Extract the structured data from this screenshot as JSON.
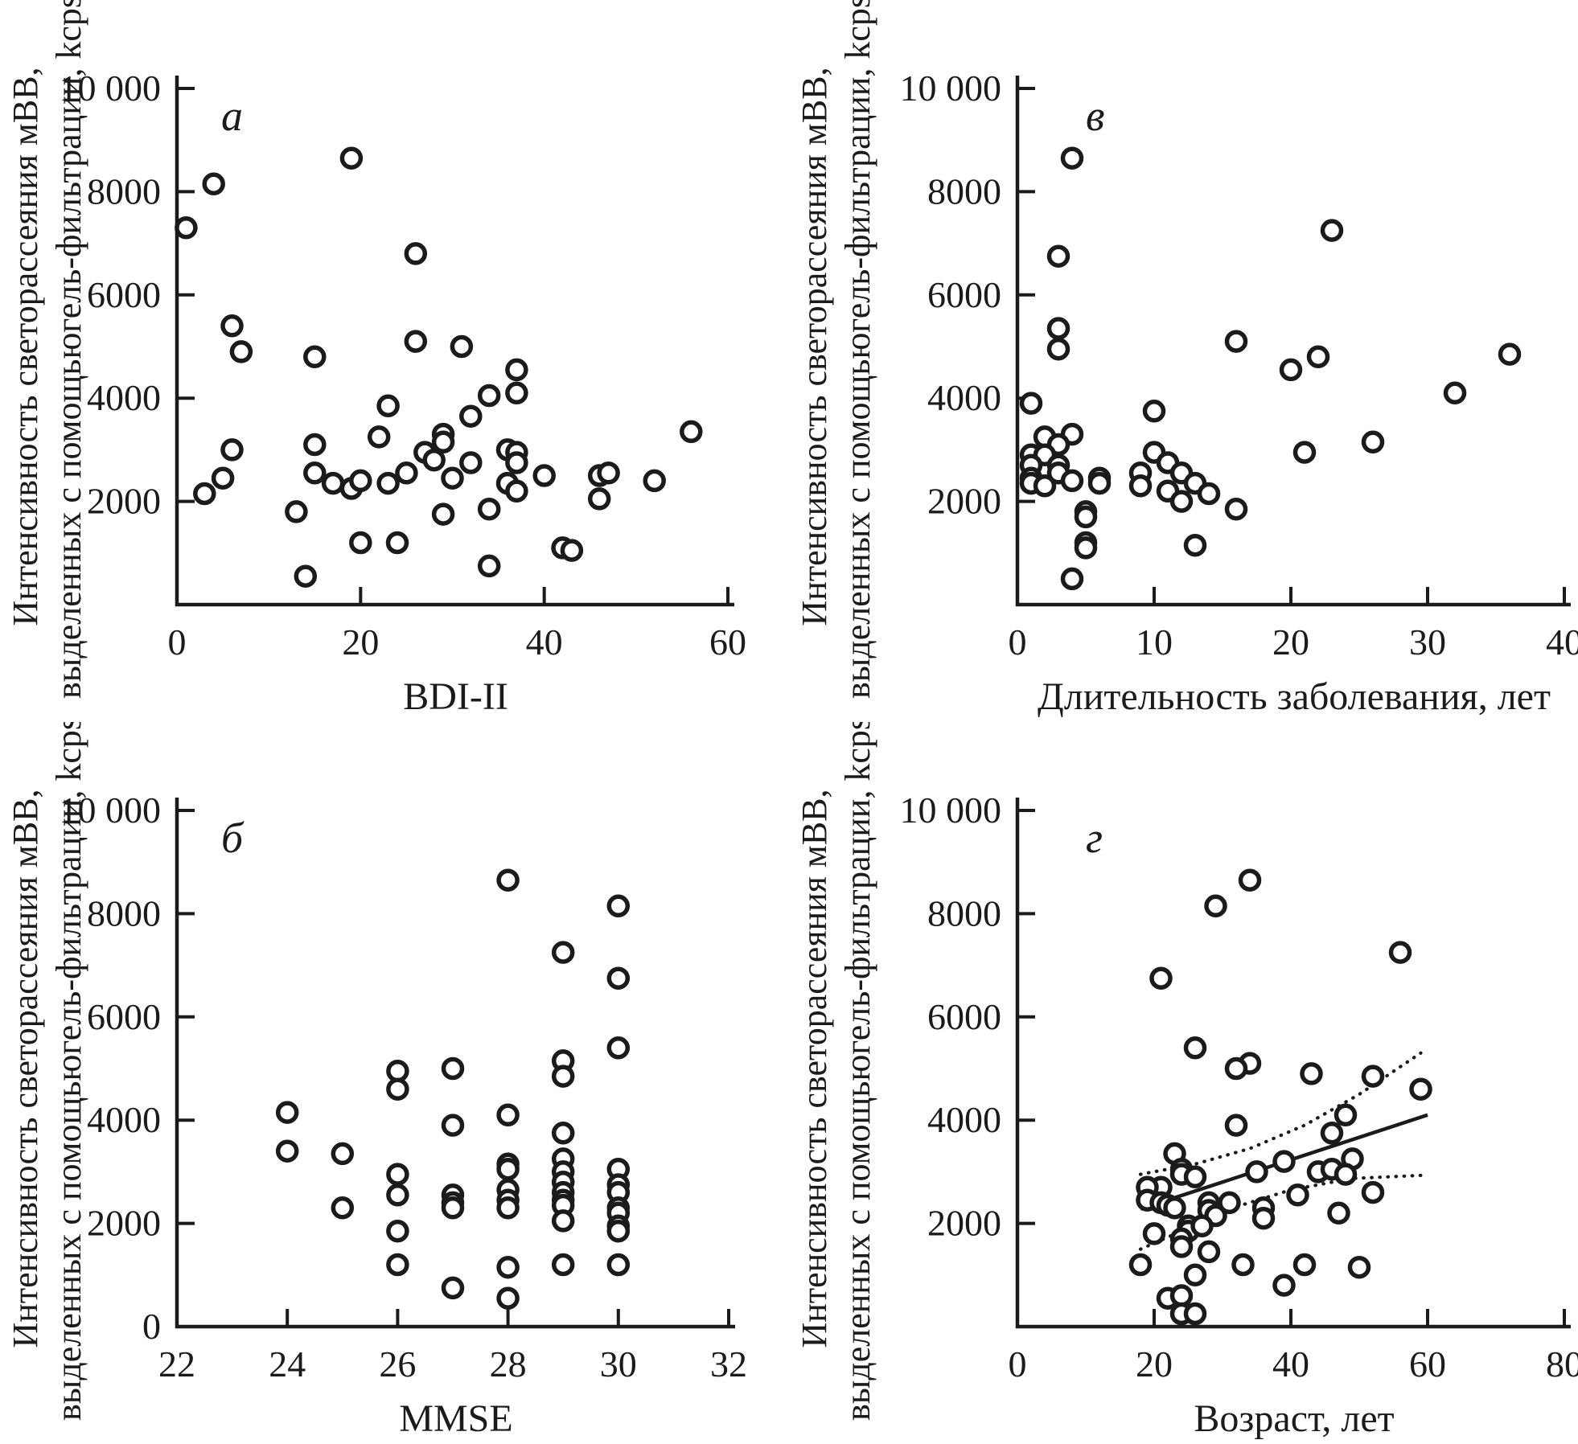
{
  "figure": {
    "kind": "four-panel-scatter-figure",
    "background": "#ffffff",
    "ink_color": "#1b1b1b",
    "shared_ylabel_line1": "Интенсивность светорассеяния мВВ,",
    "shared_ylabel_line2": "выделенных с помощьюгель-фильтрации, kcps"
  },
  "chart_data": [
    {
      "id": "a",
      "panel_letter": "а",
      "type": "scatter",
      "title": "",
      "xlabel": "BDI-II",
      "ylabel_line1": "Интенсивность светорассеяния мВВ,",
      "ylabel_line2": "выделенных с помощьюгель-фильтрации, kcps",
      "xlim": [
        0,
        60
      ],
      "ylim": [
        0,
        10000
      ],
      "xticks": [
        0,
        20,
        40,
        60
      ],
      "yticks": [
        2000,
        4000,
        6000,
        8000,
        10000
      ],
      "ytick_labels": [
        "2000",
        "4000",
        "6000",
        "8000",
        "10 000"
      ],
      "show_y_zero_label": false,
      "grid": false,
      "points": [
        [
          19,
          8650
        ],
        [
          4,
          8150
        ],
        [
          1,
          7300
        ],
        [
          26,
          6800
        ],
        [
          6,
          5400
        ],
        [
          7,
          4900
        ],
        [
          15,
          4800
        ],
        [
          26,
          5100
        ],
        [
          31,
          5000
        ],
        [
          37,
          4550
        ],
        [
          34,
          4050
        ],
        [
          37,
          4100
        ],
        [
          23,
          3850
        ],
        [
          32,
          3650
        ],
        [
          3,
          2150
        ],
        [
          5,
          2450
        ],
        [
          6,
          3000
        ],
        [
          13,
          1800
        ],
        [
          15,
          3100
        ],
        [
          15,
          2550
        ],
        [
          17,
          2350
        ],
        [
          19,
          2250
        ],
        [
          20,
          2400
        ],
        [
          20,
          1200
        ],
        [
          22,
          3250
        ],
        [
          23,
          2350
        ],
        [
          24,
          1200
        ],
        [
          25,
          2550
        ],
        [
          27,
          2950
        ],
        [
          28,
          2800
        ],
        [
          29,
          3300
        ],
        [
          29,
          3150
        ],
        [
          30,
          2450
        ],
        [
          29,
          1750
        ],
        [
          32,
          2750
        ],
        [
          34,
          1850
        ],
        [
          34,
          750
        ],
        [
          36,
          3000
        ],
        [
          36,
          2350
        ],
        [
          37,
          2950
        ],
        [
          37,
          2750
        ],
        [
          37,
          2200
        ],
        [
          14,
          550
        ],
        [
          40,
          2500
        ],
        [
          42,
          1100
        ],
        [
          43,
          1050
        ],
        [
          46,
          2500
        ],
        [
          47,
          2550
        ],
        [
          46,
          2050
        ],
        [
          52,
          2400
        ],
        [
          56,
          3350
        ]
      ]
    },
    {
      "id": "v",
      "panel_letter": "в",
      "type": "scatter",
      "title": "",
      "xlabel": "Длительность заболевания, лет",
      "ylabel_line1": "Интенсивность светорассеяния мВВ,",
      "ylabel_line2": "выделенных с помощьюгель-фильтрации, kcps",
      "xlim": [
        0,
        40
      ],
      "ylim": [
        0,
        10000
      ],
      "xticks": [
        0,
        10,
        20,
        30,
        40
      ],
      "yticks": [
        2000,
        4000,
        6000,
        8000,
        10000
      ],
      "ytick_labels": [
        "2000",
        "4000",
        "6000",
        "8000",
        "10 000"
      ],
      "show_y_zero_label": false,
      "grid": false,
      "points": [
        [
          4,
          8650
        ],
        [
          23,
          7250
        ],
        [
          3,
          6750
        ],
        [
          3,
          5350
        ],
        [
          3,
          4950
        ],
        [
          16,
          5100
        ],
        [
          22,
          4800
        ],
        [
          20,
          4550
        ],
        [
          36,
          4850
        ],
        [
          32,
          4100
        ],
        [
          1,
          3900
        ],
        [
          10,
          3750
        ],
        [
          4,
          3300
        ],
        [
          2,
          3250
        ],
        [
          3,
          3100
        ],
        [
          26,
          3150
        ],
        [
          21,
          2950
        ],
        [
          10,
          2950
        ],
        [
          1,
          2900
        ],
        [
          2,
          2900
        ],
        [
          11,
          2750
        ],
        [
          1,
          2700
        ],
        [
          3,
          2700
        ],
        [
          3,
          2550
        ],
        [
          1,
          2450
        ],
        [
          1,
          2350
        ],
        [
          2,
          2300
        ],
        [
          4,
          2400
        ],
        [
          6,
          2450
        ],
        [
          6,
          2350
        ],
        [
          9,
          2550
        ],
        [
          9,
          2300
        ],
        [
          12,
          2550
        ],
        [
          11,
          2200
        ],
        [
          12,
          2000
        ],
        [
          13,
          2350
        ],
        [
          14,
          2150
        ],
        [
          16,
          1850
        ],
        [
          5,
          1800
        ],
        [
          5,
          1700
        ],
        [
          5,
          1200
        ],
        [
          5,
          1100
        ],
        [
          13,
          1150
        ],
        [
          4,
          500
        ]
      ]
    },
    {
      "id": "b",
      "panel_letter": "б",
      "type": "scatter",
      "title": "",
      "xlabel": "MMSE",
      "ylabel_line1": "Интенсивность светорассеяния мВВ,",
      "ylabel_line2": "выделенных с помощьюгель-фильтрации, kcps",
      "xlim": [
        22,
        32
      ],
      "ylim": [
        0,
        10000
      ],
      "xticks": [
        22,
        24,
        26,
        28,
        30,
        32
      ],
      "yticks": [
        2000,
        4000,
        6000,
        8000,
        10000
      ],
      "ytick_labels": [
        "2000",
        "4000",
        "6000",
        "8000",
        "10 000"
      ],
      "show_y_zero_label": true,
      "y_zero_label": "0",
      "grid": false,
      "points": [
        [
          24,
          4150
        ],
        [
          24,
          3400
        ],
        [
          25,
          3350
        ],
        [
          25,
          2300
        ],
        [
          26,
          4950
        ],
        [
          26,
          4600
        ],
        [
          26,
          2950
        ],
        [
          26,
          2550
        ],
        [
          26,
          1850
        ],
        [
          26,
          1200
        ],
        [
          27,
          5000
        ],
        [
          27,
          3900
        ],
        [
          27,
          2550
        ],
        [
          27,
          2400
        ],
        [
          27,
          2300
        ],
        [
          27,
          750
        ],
        [
          28,
          8650
        ],
        [
          28,
          4100
        ],
        [
          28,
          3150
        ],
        [
          28,
          3050
        ],
        [
          28,
          2650
        ],
        [
          28,
          2450
        ],
        [
          28,
          2300
        ],
        [
          28,
          1150
        ],
        [
          28,
          550
        ],
        [
          29,
          7250
        ],
        [
          29,
          5150
        ],
        [
          29,
          4850
        ],
        [
          29,
          3750
        ],
        [
          29,
          3250
        ],
        [
          29,
          3000
        ],
        [
          29,
          2800
        ],
        [
          29,
          2600
        ],
        [
          29,
          2450
        ],
        [
          29,
          2350
        ],
        [
          29,
          2050
        ],
        [
          29,
          1200
        ],
        [
          30,
          8150
        ],
        [
          30,
          6750
        ],
        [
          30,
          5400
        ],
        [
          30,
          3050
        ],
        [
          30,
          2750
        ],
        [
          30,
          2600
        ],
        [
          30,
          2300
        ],
        [
          30,
          2200
        ],
        [
          30,
          1950
        ],
        [
          30,
          1850
        ],
        [
          30,
          1200
        ]
      ]
    },
    {
      "id": "g",
      "panel_letter": "г",
      "type": "scatter",
      "title": "",
      "xlabel": "Возраст, лет",
      "ylabel_line1": "Интенсивность светорассеяния мВВ,",
      "ylabel_line2": "выделенных с помощьюгель-фильтрации, kcps",
      "xlim": [
        0,
        80
      ],
      "ylim": [
        0,
        10000
      ],
      "xticks": [
        0,
        20,
        40,
        60,
        80
      ],
      "yticks": [
        2000,
        4000,
        6000,
        8000,
        10000
      ],
      "ytick_labels": [
        "2000",
        "4000",
        "6000",
        "8000",
        "10 000"
      ],
      "show_y_zero_label": false,
      "grid": false,
      "points": [
        [
          34,
          8650
        ],
        [
          29,
          8150
        ],
        [
          56,
          7250
        ],
        [
          21,
          6750
        ],
        [
          26,
          5400
        ],
        [
          34,
          5100
        ],
        [
          32,
          5000
        ],
        [
          43,
          4900
        ],
        [
          52,
          4850
        ],
        [
          59,
          4600
        ],
        [
          48,
          4100
        ],
        [
          46,
          3750
        ],
        [
          32,
          3900
        ],
        [
          23,
          3350
        ],
        [
          39,
          3200
        ],
        [
          49,
          3250
        ],
        [
          24,
          3050
        ],
        [
          24,
          2950
        ],
        [
          35,
          3000
        ],
        [
          44,
          3000
        ],
        [
          46,
          3050
        ],
        [
          48,
          2950
        ],
        [
          26,
          2900
        ],
        [
          21,
          2700
        ],
        [
          19,
          2700
        ],
        [
          41,
          2550
        ],
        [
          52,
          2600
        ],
        [
          19,
          2450
        ],
        [
          21,
          2400
        ],
        [
          22,
          2350
        ],
        [
          23,
          2300
        ],
        [
          28,
          2400
        ],
        [
          28,
          2250
        ],
        [
          29,
          2150
        ],
        [
          31,
          2400
        ],
        [
          36,
          2300
        ],
        [
          36,
          2100
        ],
        [
          47,
          2200
        ],
        [
          25,
          1950
        ],
        [
          25,
          1850
        ],
        [
          27,
          1950
        ],
        [
          24,
          1700
        ],
        [
          24,
          1550
        ],
        [
          28,
          1450
        ],
        [
          20,
          1800
        ],
        [
          18,
          1200
        ],
        [
          33,
          1200
        ],
        [
          42,
          1200
        ],
        [
          50,
          1150
        ],
        [
          26,
          1000
        ],
        [
          39,
          800
        ],
        [
          22,
          550
        ],
        [
          24,
          600
        ],
        [
          24,
          250
        ],
        [
          26,
          250
        ]
      ],
      "fit_line": [
        [
          18,
          2280
        ],
        [
          60,
          4100
        ]
      ],
      "ci_upper": [
        [
          18,
          2950
        ],
        [
          26,
          3150
        ],
        [
          34,
          3450
        ],
        [
          42,
          3900
        ],
        [
          50,
          4500
        ],
        [
          59,
          5300
        ]
      ],
      "ci_lower": [
        [
          18,
          1500
        ],
        [
          24,
          1850
        ],
        [
          31,
          2280
        ],
        [
          40,
          2650
        ],
        [
          49,
          2870
        ],
        [
          59,
          2930
        ]
      ]
    }
  ]
}
